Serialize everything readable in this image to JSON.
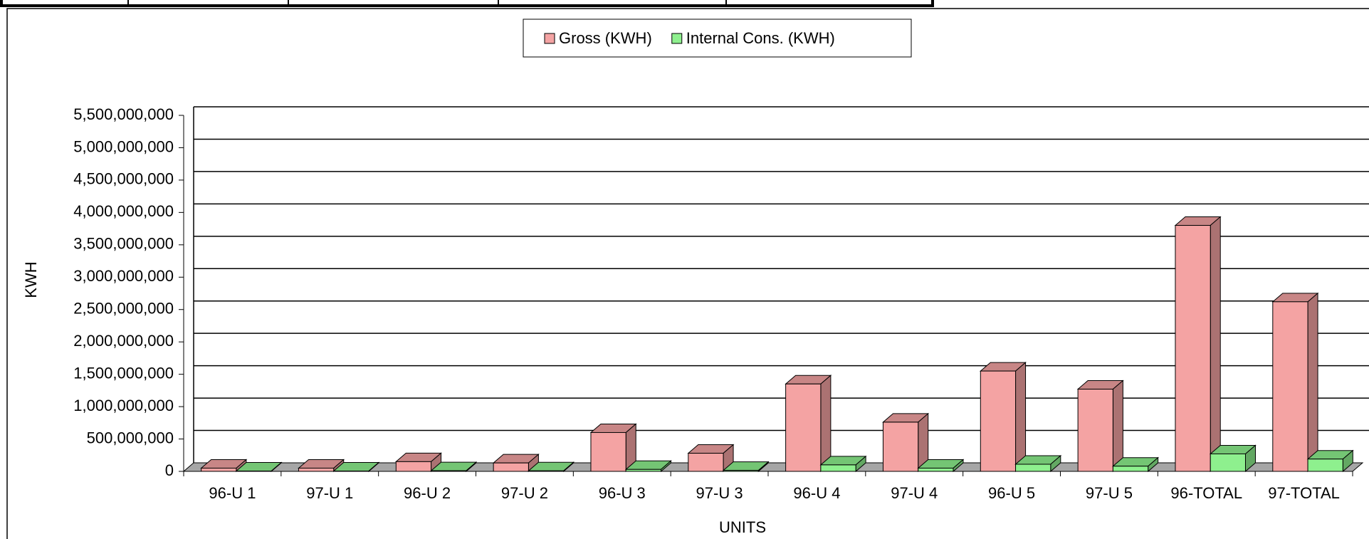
{
  "chart_data": {
    "type": "bar3d",
    "xlabel": "UNITS",
    "ylabel": "KWH",
    "categories": [
      "96-U 1",
      "97-U 1",
      "96-U 2",
      "97-U 2",
      "96-U 3",
      "97-U 3",
      "96-U 4",
      "97-U 4",
      "96-U 5",
      "97-U 5",
      "96-TOTAL",
      "97-TOTAL"
    ],
    "series": [
      {
        "name": "Gross (KWH)",
        "color": "#f4a3a3",
        "values": [
          50000000,
          50000000,
          150000000,
          130000000,
          600000000,
          280000000,
          1350000000,
          760000000,
          1550000000,
          1270000000,
          3800000000,
          2620000000
        ]
      },
      {
        "name": "Internal Cons. (KWH)",
        "color": "#8ef08e",
        "values": [
          5000000,
          5000000,
          10000000,
          8000000,
          30000000,
          15000000,
          100000000,
          50000000,
          110000000,
          80000000,
          270000000,
          190000000
        ]
      }
    ],
    "ylim": [
      0,
      5500000000
    ],
    "yticks": [
      0,
      {
        "value": 500000000,
        "label": "500,000,000"
      },
      {
        "value": 1000000000,
        "label": "1,000,000,000"
      },
      {
        "value": 1500000000,
        "label": "1,500,000,000"
      },
      {
        "value": 2000000000,
        "label": "2,000,000,000"
      },
      {
        "value": 2500000000,
        "label": "2,500,000,000"
      },
      {
        "value": 3000000000,
        "label": "3,000,000,000"
      },
      {
        "value": 3500000000,
        "label": "3,500,000,000"
      },
      {
        "value": 4000000000,
        "label": "4,000,000,000"
      },
      {
        "value": 4500000000,
        "label": "4,500,000,000"
      },
      {
        "value": 5000000000,
        "label": "5,000,000,000"
      },
      {
        "value": 5500000000,
        "label": "5,500,000,000"
      }
    ],
    "grid": true,
    "legend": "top"
  }
}
